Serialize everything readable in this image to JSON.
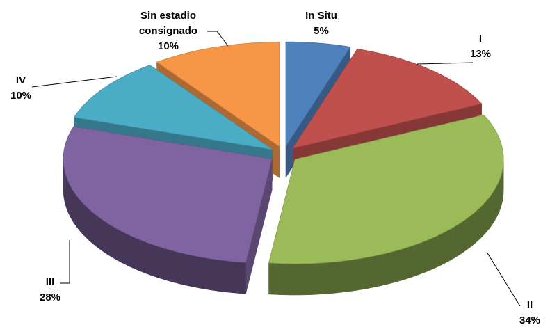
{
  "chart_data": {
    "type": "pie",
    "categories": [
      "In Situ",
      "I",
      "II",
      "III",
      "IV",
      "Sin estadio consignado"
    ],
    "values": [
      5,
      13,
      34,
      28,
      10,
      10
    ],
    "value_labels": [
      "5%",
      "13%",
      "34%",
      "28%",
      "10%",
      "10%"
    ],
    "colors": [
      "#4f81bd",
      "#c0504d",
      "#9bbb59",
      "#8064a2",
      "#4bacc6",
      "#f79646"
    ]
  }
}
